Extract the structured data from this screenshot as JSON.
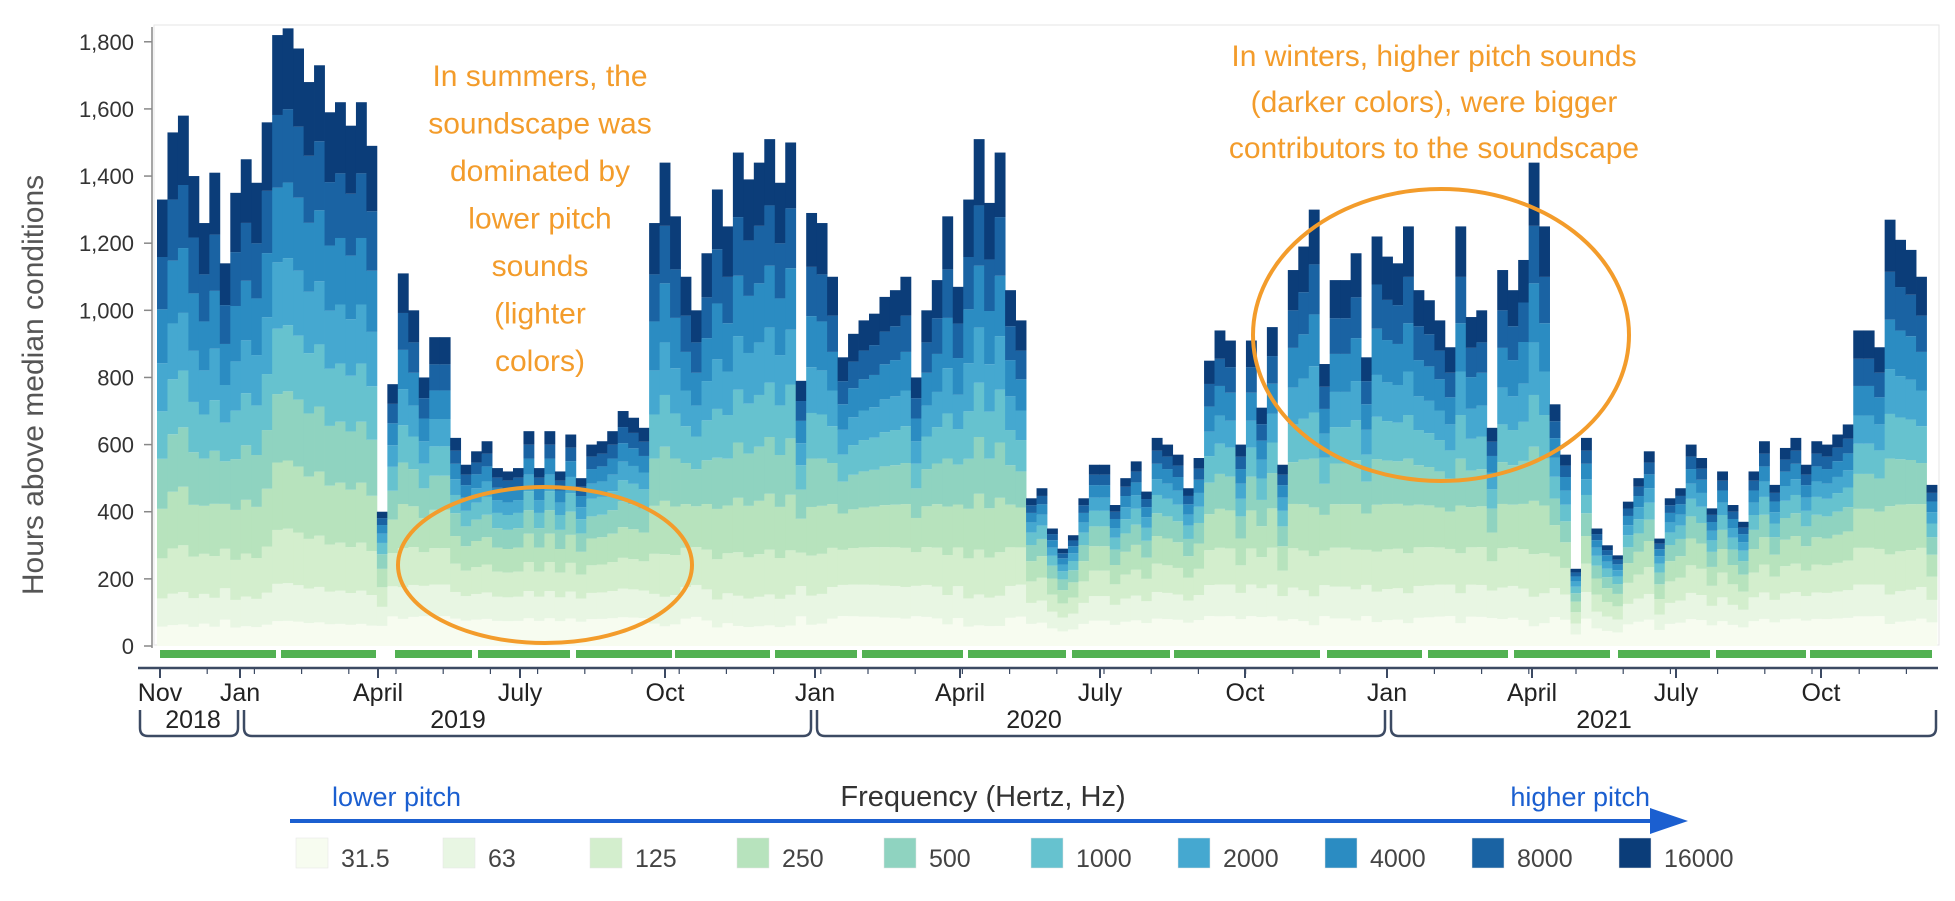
{
  "chart_data": {
    "type": "stacked-bar",
    "ylabel": "Hours above median conditions",
    "ylim": [
      0,
      1850
    ],
    "yticks": [
      0,
      200,
      400,
      600,
      800,
      1000,
      1200,
      1400,
      1600,
      1800
    ],
    "ytick_labels": [
      "0",
      "200",
      "400",
      "600",
      "800",
      "1,000",
      "1,200",
      "1,400",
      "1,600",
      "1,800"
    ],
    "grid": false,
    "x_period": {
      "from": "Nov 2018",
      "to": "Dec 2021",
      "step": "week"
    },
    "month_labels": [
      "Nov",
      "Jan",
      "April",
      "July",
      "Oct",
      "Jan",
      "April",
      "July",
      "Oct",
      "Jan",
      "April",
      "July",
      "Oct"
    ],
    "year_labels": [
      "2018",
      "2019",
      "2020",
      "2021"
    ],
    "legend_title": "Frequency (Hertz, Hz)",
    "legend_left_label": "lower pitch",
    "legend_right_label": "higher pitch",
    "series": [
      {
        "name": "31.5",
        "color": "#f7fcf0"
      },
      {
        "name": "63",
        "color": "#e8f6e3"
      },
      {
        "name": "125",
        "color": "#d3eecd"
      },
      {
        "name": "250",
        "color": "#b7e3bd"
      },
      {
        "name": "500",
        "color": "#8fd3c0"
      },
      {
        "name": "1000",
        "color": "#66c2cf"
      },
      {
        "name": "2000",
        "color": "#45a8d0"
      },
      {
        "name": "4000",
        "color": "#2b8cc2"
      },
      {
        "name": "8000",
        "color": "#1a63a3"
      },
      {
        "name": "16000",
        "color": "#0b3d79"
      }
    ],
    "weekly_totals": [
      1330,
      1530,
      1580,
      1400,
      1260,
      1410,
      1140,
      1350,
      1450,
      1380,
      1560,
      1820,
      1840,
      1780,
      1680,
      1730,
      1590,
      1620,
      1550,
      1620,
      1490,
      400,
      780,
      1110,
      1000,
      800,
      920,
      920,
      620,
      540,
      580,
      610,
      530,
      520,
      530,
      640,
      530,
      640,
      520,
      630,
      500,
      600,
      610,
      640,
      700,
      680,
      650,
      1260,
      1440,
      1280,
      1100,
      1000,
      1170,
      1360,
      1250,
      1470,
      1390,
      1440,
      1510,
      1380,
      1500,
      790,
      1290,
      1260,
      1100,
      860,
      930,
      970,
      990,
      1040,
      1060,
      1100,
      800,
      1000,
      1090,
      1280,
      1070,
      1330,
      1510,
      1320,
      1470,
      1060,
      970,
      440,
      470,
      350,
      290,
      330,
      440,
      540,
      540,
      420,
      500,
      550,
      460,
      620,
      600,
      570,
      470,
      560,
      850,
      940,
      910,
      600,
      910,
      710,
      950,
      540,
      1120,
      1190,
      1300,
      840,
      1090,
      1090,
      1170,
      860,
      1220,
      1160,
      1140,
      1250,
      1060,
      1030,
      970,
      890,
      1250,
      980,
      1000,
      650,
      1120,
      1060,
      1150,
      1440,
      1250,
      720,
      570,
      230,
      620,
      350,
      300,
      270,
      430,
      500,
      580,
      320,
      440,
      470,
      600,
      560,
      410,
      520,
      420,
      370,
      520,
      610,
      480,
      590,
      620,
      540,
      610,
      600,
      630,
      660,
      940,
      940,
      890,
      1270,
      1210,
      1180,
      1100,
      480
    ],
    "annotations": [
      {
        "lines": [
          "In summers, the",
          "soundscape was",
          "dominated by",
          "lower pitch",
          "sounds",
          "(lighter",
          "colors)"
        ]
      },
      {
        "lines": [
          "In winters, higher pitch sounds",
          "(darker colors), were bigger",
          "contributors to the soundscape"
        ]
      }
    ]
  },
  "style": {
    "annotation_color": "#f39c2b",
    "pitch_label_color": "#1b5fd0",
    "arrow_color": "#1b5fd0",
    "axis_color": "#3c4a63",
    "green_bar_color": "#52b152",
    "text_color": "#333333"
  }
}
